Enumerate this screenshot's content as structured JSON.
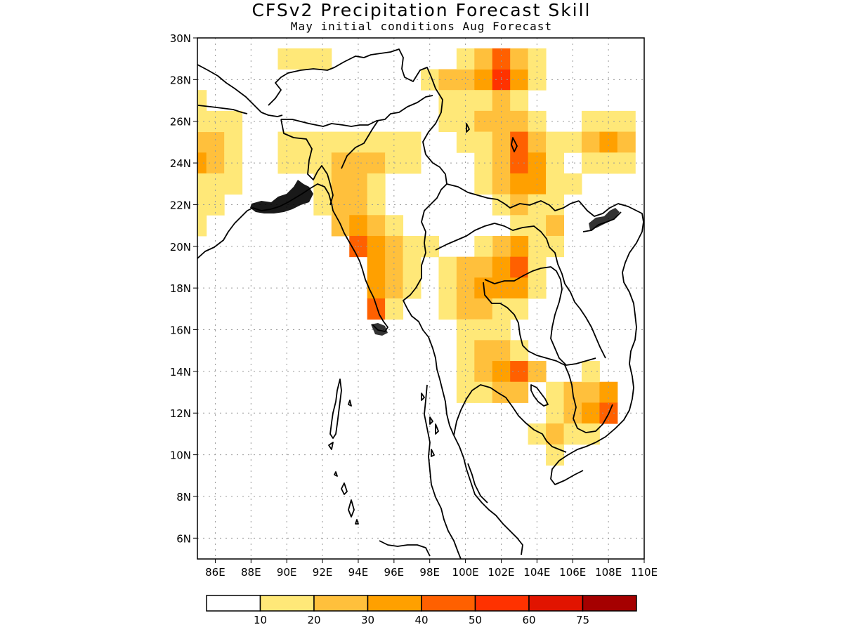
{
  "header": {
    "title": "CFSv2 Precipitation Forecast Skill",
    "subtitle": "May initial conditions  Aug Forecast"
  },
  "axes": {
    "lat_labels": [
      "6N",
      "8N",
      "10N",
      "12N",
      "14N",
      "16N",
      "18N",
      "20N",
      "22N",
      "24N",
      "26N",
      "28N",
      "30N"
    ],
    "lat_values": [
      6,
      8,
      10,
      12,
      14,
      16,
      18,
      20,
      22,
      24,
      26,
      28,
      30
    ],
    "lon_labels": [
      "86E",
      "88E",
      "90E",
      "92E",
      "94E",
      "96E",
      "98E",
      "100E",
      "102E",
      "104E",
      "106E",
      "108E",
      "110E"
    ],
    "lon_values": [
      86,
      88,
      90,
      92,
      94,
      96,
      98,
      100,
      102,
      104,
      106,
      108,
      110
    ],
    "lon_range": [
      85,
      110
    ],
    "lat_range": [
      5,
      30
    ],
    "grid": "dotted"
  },
  "colorbar": {
    "labels": [
      "10",
      "20",
      "30",
      "40",
      "50",
      "60",
      "75"
    ],
    "colors": [
      "#ffffff",
      "#ffe878",
      "#ffc03c",
      "#ffa000",
      "#ff6000",
      "#ff3200",
      "#e11400",
      "#a50000"
    ]
  },
  "map_data": {
    "field": "precipitation forecast skill",
    "cell_degrees": 1,
    "cells": [
      {
        "lon": 90,
        "lat": 29,
        "v": 1
      },
      {
        "lon": 91,
        "lat": 29,
        "v": 1
      },
      {
        "lon": 92,
        "lat": 29,
        "v": 1
      },
      {
        "lon": 98,
        "lat": 28,
        "v": 1
      },
      {
        "lon": 99,
        "lat": 28,
        "v": 2
      },
      {
        "lon": 100,
        "lat": 28,
        "v": 2
      },
      {
        "lon": 101,
        "lat": 28,
        "v": 3
      },
      {
        "lon": 102,
        "lat": 28,
        "v": 5
      },
      {
        "lon": 103,
        "lat": 28,
        "v": 3
      },
      {
        "lon": 104,
        "lat": 28,
        "v": 1
      },
      {
        "lon": 100,
        "lat": 29,
        "v": 1
      },
      {
        "lon": 101,
        "lat": 29,
        "v": 2
      },
      {
        "lon": 102,
        "lat": 29,
        "v": 4
      },
      {
        "lon": 103,
        "lat": 29,
        "v": 2
      },
      {
        "lon": 104,
        "lat": 29,
        "v": 1
      },
      {
        "lon": 99,
        "lat": 27,
        "v": 1
      },
      {
        "lon": 100,
        "lat": 27,
        "v": 1
      },
      {
        "lon": 101,
        "lat": 27,
        "v": 1
      },
      {
        "lon": 102,
        "lat": 27,
        "v": 2
      },
      {
        "lon": 103,
        "lat": 27,
        "v": 1
      },
      {
        "lon": 85,
        "lat": 25,
        "v": 2
      },
      {
        "lon": 85,
        "lat": 24,
        "v": 3
      },
      {
        "lon": 85,
        "lat": 23,
        "v": 1
      },
      {
        "lon": 85,
        "lat": 22,
        "v": 1
      },
      {
        "lon": 85,
        "lat": 26,
        "v": 1
      },
      {
        "lon": 85,
        "lat": 27,
        "v": 1
      },
      {
        "lon": 85,
        "lat": 21,
        "v": 1
      },
      {
        "lon": 86,
        "lat": 25,
        "v": 2
      },
      {
        "lon": 86,
        "lat": 24,
        "v": 2
      },
      {
        "lon": 86,
        "lat": 26,
        "v": 1
      },
      {
        "lon": 86,
        "lat": 23,
        "v": 1
      },
      {
        "lon": 86,
        "lat": 22,
        "v": 1
      },
      {
        "lon": 87,
        "lat": 25,
        "v": 1
      },
      {
        "lon": 87,
        "lat": 24,
        "v": 1
      },
      {
        "lon": 87,
        "lat": 26,
        "v": 1
      },
      {
        "lon": 87,
        "lat": 23,
        "v": 1
      },
      {
        "lon": 90,
        "lat": 25,
        "v": 1
      },
      {
        "lon": 91,
        "lat": 25,
        "v": 1
      },
      {
        "lon": 92,
        "lat": 25,
        "v": 1
      },
      {
        "lon": 90,
        "lat": 24,
        "v": 1
      },
      {
        "lon": 91,
        "lat": 24,
        "v": 1
      },
      {
        "lon": 92,
        "lat": 24,
        "v": 1
      },
      {
        "lon": 93,
        "lat": 25,
        "v": 1
      },
      {
        "lon": 94,
        "lat": 25,
        "v": 1
      },
      {
        "lon": 95,
        "lat": 25,
        "v": 1
      },
      {
        "lon": 96,
        "lat": 25,
        "v": 1
      },
      {
        "lon": 97,
        "lat": 25,
        "v": 1
      },
      {
        "lon": 92,
        "lat": 23,
        "v": 1
      },
      {
        "lon": 93,
        "lat": 24,
        "v": 2
      },
      {
        "lon": 94,
        "lat": 24,
        "v": 2
      },
      {
        "lon": 95,
        "lat": 24,
        "v": 2
      },
      {
        "lon": 96,
        "lat": 24,
        "v": 1
      },
      {
        "lon": 97,
        "lat": 24,
        "v": 1
      },
      {
        "lon": 93,
        "lat": 23,
        "v": 2
      },
      {
        "lon": 94,
        "lat": 23,
        "v": 2
      },
      {
        "lon": 95,
        "lat": 23,
        "v": 1
      },
      {
        "lon": 93,
        "lat": 22,
        "v": 2
      },
      {
        "lon": 94,
        "lat": 22,
        "v": 2
      },
      {
        "lon": 95,
        "lat": 22,
        "v": 1
      },
      {
        "lon": 93,
        "lat": 21,
        "v": 2
      },
      {
        "lon": 94,
        "lat": 21,
        "v": 3
      },
      {
        "lon": 95,
        "lat": 21,
        "v": 2
      },
      {
        "lon": 96,
        "lat": 21,
        "v": 1
      },
      {
        "lon": 94,
        "lat": 20,
        "v": 4
      },
      {
        "lon": 95,
        "lat": 20,
        "v": 3
      },
      {
        "lon": 96,
        "lat": 20,
        "v": 2
      },
      {
        "lon": 97,
        "lat": 20,
        "v": 1
      },
      {
        "lon": 95,
        "lat": 19,
        "v": 3
      },
      {
        "lon": 96,
        "lat": 19,
        "v": 2
      },
      {
        "lon": 97,
        "lat": 19,
        "v": 1
      },
      {
        "lon": 95,
        "lat": 18,
        "v": 3
      },
      {
        "lon": 96,
        "lat": 18,
        "v": 2
      },
      {
        "lon": 97,
        "lat": 18,
        "v": 1
      },
      {
        "lon": 95,
        "lat": 17,
        "v": 4
      },
      {
        "lon": 96,
        "lat": 17,
        "v": 1
      },
      {
        "lon": 99,
        "lat": 26,
        "v": 1
      },
      {
        "lon": 100,
        "lat": 26,
        "v": 1
      },
      {
        "lon": 101,
        "lat": 26,
        "v": 2
      },
      {
        "lon": 102,
        "lat": 26,
        "v": 2
      },
      {
        "lon": 103,
        "lat": 26,
        "v": 2
      },
      {
        "lon": 104,
        "lat": 26,
        "v": 1
      },
      {
        "lon": 100,
        "lat": 25,
        "v": 1
      },
      {
        "lon": 101,
        "lat": 25,
        "v": 1
      },
      {
        "lon": 102,
        "lat": 25,
        "v": 2
      },
      {
        "lon": 103,
        "lat": 25,
        "v": 4
      },
      {
        "lon": 104,
        "lat": 25,
        "v": 2
      },
      {
        "lon": 105,
        "lat": 25,
        "v": 1
      },
      {
        "lon": 101,
        "lat": 24,
        "v": 1
      },
      {
        "lon": 102,
        "lat": 24,
        "v": 2
      },
      {
        "lon": 103,
        "lat": 24,
        "v": 4
      },
      {
        "lon": 104,
        "lat": 24,
        "v": 3
      },
      {
        "lon": 105,
        "lat": 24,
        "v": 1
      },
      {
        "lon": 101,
        "lat": 23,
        "v": 1
      },
      {
        "lon": 102,
        "lat": 23,
        "v": 2
      },
      {
        "lon": 103,
        "lat": 23,
        "v": 3
      },
      {
        "lon": 104,
        "lat": 23,
        "v": 3
      },
      {
        "lon": 105,
        "lat": 23,
        "v": 1
      },
      {
        "lon": 106,
        "lat": 23,
        "v": 1
      },
      {
        "lon": 102,
        "lat": 22,
        "v": 1
      },
      {
        "lon": 103,
        "lat": 22,
        "v": 2
      },
      {
        "lon": 104,
        "lat": 22,
        "v": 1
      },
      {
        "lon": 105,
        "lat": 22,
        "v": 1
      },
      {
        "lon": 107,
        "lat": 26,
        "v": 1
      },
      {
        "lon": 108,
        "lat": 26,
        "v": 1
      },
      {
        "lon": 109,
        "lat": 26,
        "v": 1
      },
      {
        "lon": 106,
        "lat": 25,
        "v": 1
      },
      {
        "lon": 107,
        "lat": 25,
        "v": 2
      },
      {
        "lon": 108,
        "lat": 25,
        "v": 3
      },
      {
        "lon": 109,
        "lat": 25,
        "v": 2
      },
      {
        "lon": 107,
        "lat": 24,
        "v": 1
      },
      {
        "lon": 108,
        "lat": 24,
        "v": 1
      },
      {
        "lon": 109,
        "lat": 24,
        "v": 1
      },
      {
        "lon": 103,
        "lat": 21,
        "v": 1
      },
      {
        "lon": 104,
        "lat": 21,
        "v": 1
      },
      {
        "lon": 105,
        "lat": 21,
        "v": 2
      },
      {
        "lon": 104,
        "lat": 20,
        "v": 1
      },
      {
        "lon": 105,
        "lat": 20,
        "v": 1
      },
      {
        "lon": 103,
        "lat": 20,
        "v": 3
      },
      {
        "lon": 102,
        "lat": 20,
        "v": 2
      },
      {
        "lon": 101,
        "lat": 20,
        "v": 1
      },
      {
        "lon": 98,
        "lat": 20,
        "v": 1
      },
      {
        "lon": 99,
        "lat": 19,
        "v": 1
      },
      {
        "lon": 100,
        "lat": 19,
        "v": 2
      },
      {
        "lon": 101,
        "lat": 19,
        "v": 2
      },
      {
        "lon": 102,
        "lat": 19,
        "v": 3
      },
      {
        "lon": 103,
        "lat": 19,
        "v": 4
      },
      {
        "lon": 104,
        "lat": 19,
        "v": 1
      },
      {
        "lon": 99,
        "lat": 18,
        "v": 1
      },
      {
        "lon": 100,
        "lat": 18,
        "v": 2
      },
      {
        "lon": 101,
        "lat": 18,
        "v": 3
      },
      {
        "lon": 102,
        "lat": 18,
        "v": 3
      },
      {
        "lon": 103,
        "lat": 18,
        "v": 3
      },
      {
        "lon": 104,
        "lat": 18,
        "v": 1
      },
      {
        "lon": 99,
        "lat": 17,
        "v": 1
      },
      {
        "lon": 100,
        "lat": 17,
        "v": 2
      },
      {
        "lon": 101,
        "lat": 17,
        "v": 2
      },
      {
        "lon": 102,
        "lat": 17,
        "v": 1
      },
      {
        "lon": 103,
        "lat": 17,
        "v": 1
      },
      {
        "lon": 100,
        "lat": 16,
        "v": 1
      },
      {
        "lon": 101,
        "lat": 16,
        "v": 1
      },
      {
        "lon": 102,
        "lat": 16,
        "v": 1
      },
      {
        "lon": 100,
        "lat": 15,
        "v": 1
      },
      {
        "lon": 101,
        "lat": 15,
        "v": 2
      },
      {
        "lon": 102,
        "lat": 15,
        "v": 2
      },
      {
        "lon": 103,
        "lat": 15,
        "v": 1
      },
      {
        "lon": 100,
        "lat": 14,
        "v": 1
      },
      {
        "lon": 101,
        "lat": 14,
        "v": 2
      },
      {
        "lon": 102,
        "lat": 14,
        "v": 3
      },
      {
        "lon": 103,
        "lat": 14,
        "v": 4
      },
      {
        "lon": 104,
        "lat": 14,
        "v": 2
      },
      {
        "lon": 100,
        "lat": 13,
        "v": 1
      },
      {
        "lon": 101,
        "lat": 13,
        "v": 1
      },
      {
        "lon": 102,
        "lat": 13,
        "v": 2
      },
      {
        "lon": 103,
        "lat": 13,
        "v": 2
      },
      {
        "lon": 105,
        "lat": 13,
        "v": 1
      },
      {
        "lon": 106,
        "lat": 13,
        "v": 2
      },
      {
        "lon": 107,
        "lat": 13,
        "v": 2
      },
      {
        "lon": 108,
        "lat": 13,
        "v": 3
      },
      {
        "lon": 105,
        "lat": 12,
        "v": 1
      },
      {
        "lon": 106,
        "lat": 12,
        "v": 2
      },
      {
        "lon": 107,
        "lat": 12,
        "v": 3
      },
      {
        "lon": 108,
        "lat": 12,
        "v": 4
      },
      {
        "lon": 104,
        "lat": 11,
        "v": 1
      },
      {
        "lon": 105,
        "lat": 11,
        "v": 2
      },
      {
        "lon": 106,
        "lat": 11,
        "v": 1
      },
      {
        "lon": 107,
        "lat": 11,
        "v": 1
      },
      {
        "lon": 105,
        "lat": 10,
        "v": 1
      },
      {
        "lon": 107,
        "lat": 14,
        "v": 1
      },
      {
        "lon": 98,
        "lat": 20,
        "v": 1
      },
      {
        "lon": 92,
        "lat": 22,
        "v": 1
      }
    ]
  }
}
